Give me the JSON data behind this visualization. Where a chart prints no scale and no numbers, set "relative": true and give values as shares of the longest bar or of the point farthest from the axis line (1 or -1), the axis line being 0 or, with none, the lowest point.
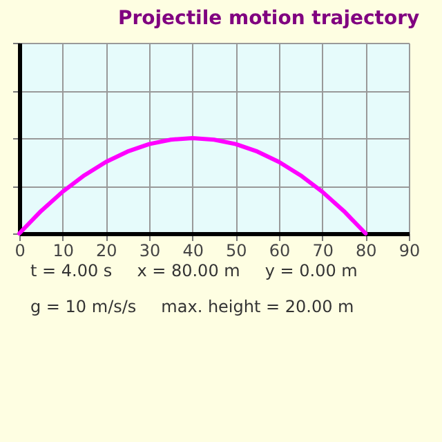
{
  "chart_data": {
    "type": "line",
    "title": "Projectile motion trajectory",
    "relative": true,
    "x": [
      0,
      5,
      10,
      15,
      20,
      25,
      30,
      35,
      40,
      45,
      50,
      55,
      60,
      65,
      70,
      75,
      80
    ],
    "series": [
      {
        "color": "#ff00ff",
        "values": [
          0,
          0.234,
          0.4375,
          0.609,
          0.75,
          0.859,
          0.9375,
          0.984,
          1,
          0.984,
          0.9375,
          0.859,
          0.75,
          0.609,
          0.4375,
          0.234,
          0
        ]
      }
    ],
    "xlim": [
      0,
      90
    ],
    "xticks": [
      0,
      10,
      20,
      30,
      40,
      50,
      60,
      70,
      80,
      90
    ],
    "grid": true,
    "line_style": "solid",
    "annotations": [
      "t = 4.00 s",
      "x = 80.00 m",
      "y = 0.00 m",
      "g = 10 m/s/s",
      "max. height = 20.00 m"
    ]
  }
}
